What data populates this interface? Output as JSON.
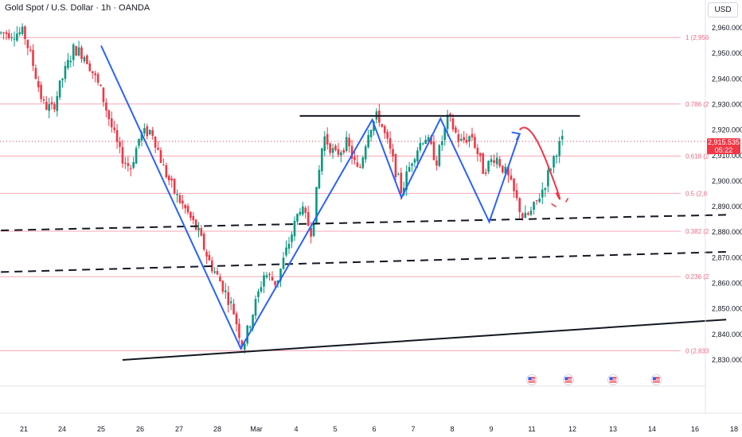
{
  "header": {
    "symbol_title": "Gold Spot / U.S. Dollar · 1h · OANDA",
    "currency_button": "USD"
  },
  "current_price": {
    "value": "2,915.535",
    "countdown": "05:22",
    "color": "#f23645"
  },
  "colors": {
    "fib_line": "#f7a6b4",
    "fib_label": "#f06680",
    "pattern_line": "#2962ff",
    "neckline": "#131722",
    "projection_arrow": "#f23645",
    "bull_candle": "#089981",
    "bear_candle": "#f23645",
    "grid": "#f0f3fa"
  },
  "chart_data": {
    "type": "candlestick",
    "title": "Gold Spot / U.S. Dollar · 1h · OANDA",
    "y_axis": {
      "ticks": [
        2960,
        2950,
        2940,
        2930,
        2920,
        2910,
        2900,
        2890,
        2880,
        2870,
        2860,
        2850,
        2840,
        2830
      ],
      "tick_labels": [
        "2,960.000",
        "2,950.000",
        "2,940.000",
        "2,930.000",
        "2,920.000",
        "2,910.000",
        "2,900.000",
        "2,890.000",
        "2,880.000",
        "2,870.000",
        "2,860.000",
        "2,850.000",
        "2,840.000",
        "2,830.000"
      ],
      "range": [
        2826,
        2966
      ]
    },
    "x_axis": {
      "ticks": [
        {
          "label": "21",
          "t": 0
        },
        {
          "label": "24",
          "t": 1
        },
        {
          "label": "25",
          "t": 2
        },
        {
          "label": "26",
          "t": 3
        },
        {
          "label": "27",
          "t": 4
        },
        {
          "label": "28",
          "t": 5
        },
        {
          "label": "Mar",
          "t": 6
        },
        {
          "label": "4",
          "t": 7
        },
        {
          "label": "5",
          "t": 8
        },
        {
          "label": "6",
          "t": 9
        },
        {
          "label": "7",
          "t": 10
        },
        {
          "label": "8",
          "t": 11
        },
        {
          "label": "9",
          "t": 12
        },
        {
          "label": "11",
          "t": 13
        },
        {
          "label": "12",
          "t": 14
        },
        {
          "label": "13",
          "t": 15
        },
        {
          "label": "14",
          "t": 16
        },
        {
          "label": "16",
          "t": 17
        },
        {
          "label": "18",
          "t": 18
        }
      ]
    },
    "price_path": [
      [
        0.0,
        2958
      ],
      [
        0.25,
        2945
      ],
      [
        0.5,
        2930
      ],
      [
        0.75,
        2928
      ],
      [
        1.0,
        2940
      ],
      [
        1.3,
        2952
      ],
      [
        1.6,
        2949
      ],
      [
        2.0,
        2935
      ],
      [
        2.25,
        2922
      ],
      [
        2.5,
        2910
      ],
      [
        2.75,
        2905
      ],
      [
        3.0,
        2918
      ],
      [
        3.3,
        2920
      ],
      [
        3.6,
        2905
      ],
      [
        3.9,
        2895
      ],
      [
        4.2,
        2888
      ],
      [
        4.5,
        2880
      ],
      [
        4.8,
        2868
      ],
      [
        5.1,
        2860
      ],
      [
        5.4,
        2850
      ],
      [
        5.65,
        2835
      ],
      [
        5.9,
        2848
      ],
      [
        6.2,
        2864
      ],
      [
        6.5,
        2860
      ],
      [
        6.8,
        2875
      ],
      [
        7.1,
        2890
      ],
      [
        7.4,
        2880
      ],
      [
        7.7,
        2918
      ],
      [
        8.0,
        2910
      ],
      [
        8.3,
        2915
      ],
      [
        8.6,
        2903
      ],
      [
        8.85,
        2920
      ],
      [
        9.1,
        2926
      ],
      [
        9.4,
        2912
      ],
      [
        9.7,
        2896
      ],
      [
        10.0,
        2910
      ],
      [
        10.3,
        2918
      ],
      [
        10.6,
        2908
      ],
      [
        10.9,
        2925
      ],
      [
        11.2,
        2915
      ],
      [
        11.5,
        2918
      ],
      [
        11.8,
        2904
      ],
      [
        12.1,
        2910
      ],
      [
        12.4,
        2902
      ],
      [
        12.8,
        2885
      ],
      [
        13.0,
        2888
      ],
      [
        13.3,
        2898
      ],
      [
        13.6,
        2912
      ],
      [
        13.8,
        2917
      ]
    ],
    "fibonacci": [
      {
        "label": "1 (2,956",
        "price": 2956.2
      },
      {
        "label": "0.786 (2",
        "price": 2930.2
      },
      {
        "label": "0.618 (2",
        "price": 2909.8
      },
      {
        "label": "0.5 (2,8",
        "price": 2895.2
      },
      {
        "label": "0.382 (2",
        "price": 2880.4
      },
      {
        "label": "0.236 (2",
        "price": 2862.6
      },
      {
        "label": "0 (2,833",
        "price": 2833.6
      }
    ],
    "neckline": {
      "from": [
        7.5,
        2925.5
      ],
      "to": [
        14.5,
        2925.5
      ]
    },
    "dashed_lines": [
      {
        "from": [
          -0.6,
          2880.7
        ],
        "to": [
          17.8,
          2886.8
        ]
      },
      {
        "from": [
          -0.6,
          2864.4
        ],
        "to": [
          17.8,
          2872.3
        ]
      }
    ],
    "support_line": {
      "from": [
        2.55,
        2830
      ],
      "to": [
        17.8,
        2845.8
      ]
    },
    "pattern_zigzag": [
      [
        2.0,
        2953
      ],
      [
        5.6,
        2834.5
      ],
      [
        8.95,
        2924
      ],
      [
        9.7,
        2893.5
      ],
      [
        10.7,
        2924.5
      ],
      [
        11.95,
        2884
      ],
      [
        12.7,
        2918.5
      ]
    ],
    "forecast_arrow": [
      [
        12.7,
        2920
      ],
      [
        12.95,
        2921
      ],
      [
        13.4,
        2906
      ],
      [
        13.6,
        2895.5
      ]
    ],
    "event_icons": [
      13.0,
      13.9,
      15.0,
      16.1
    ],
    "legend": "none",
    "grid": false
  }
}
